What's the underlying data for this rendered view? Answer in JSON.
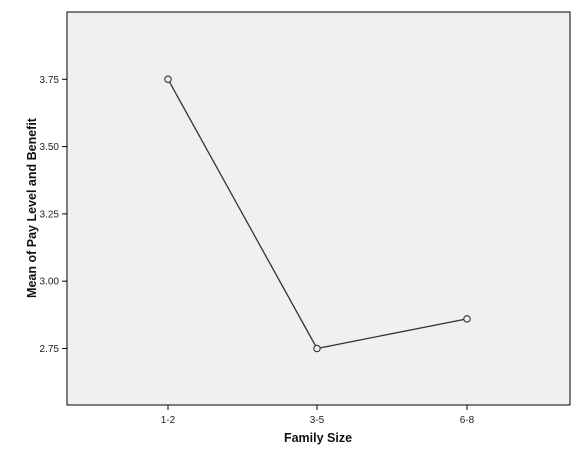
{
  "chart_data": {
    "type": "line",
    "categories": [
      "1-2",
      "3-5",
      "6-8"
    ],
    "values": [
      3.75,
      2.75,
      2.86
    ],
    "xlabel": "Family Size",
    "ylabel": "Mean of Pay Level and Benefit",
    "yticks": [
      "2.75",
      "3.00",
      "3.25",
      "3.50",
      "3.75"
    ],
    "ylim": [
      2.54,
      4.0
    ],
    "grid": false,
    "marker": "open-circle",
    "colors": {
      "plot_background": "#f0f0f0",
      "line": "#333333",
      "frame": "#000000"
    }
  }
}
